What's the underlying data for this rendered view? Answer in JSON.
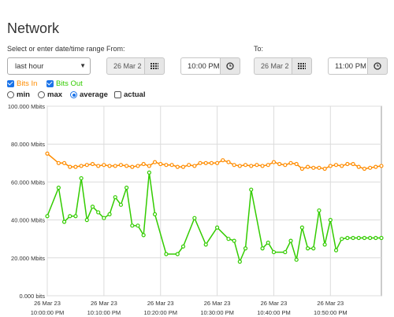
{
  "page": {
    "title": "Network"
  },
  "range": {
    "label": "Select or enter date/time range",
    "selected": "last hour"
  },
  "from": {
    "label": "From:",
    "date": "26 Mar 2",
    "time": "10:00 PM"
  },
  "to": {
    "label": "To:",
    "date": "26 Mar 2",
    "time": "11:00 PM"
  },
  "series_toggles": [
    {
      "label": "Bits In",
      "checked": true,
      "color": "#ff8c00"
    },
    {
      "label": "Bits Out",
      "checked": true,
      "color": "#33cc00"
    }
  ],
  "aggregation": {
    "options": [
      "min",
      "max",
      "average"
    ],
    "selected": "average",
    "actual_label": "actual",
    "actual_checked": false
  },
  "chart_data": {
    "type": "line",
    "y_ticks": [
      "100.000 Mbits",
      "80.000 Mbits",
      "60.000 Mbits",
      "40.000 Mbits",
      "20.000 Mbits",
      "0.000 bits"
    ],
    "x_ticks": [
      {
        "date": "26 Mar 23",
        "time": "10:00:00 PM"
      },
      {
        "date": "26 Mar 23",
        "time": "10:10:00 PM"
      },
      {
        "date": "26 Mar 23",
        "time": "10:20:00 PM"
      },
      {
        "date": "26 Mar 23",
        "time": "10:30:00 PM"
      },
      {
        "date": "26 Mar 23",
        "time": "10:40:00 PM"
      },
      {
        "date": "26 Mar 23",
        "time": "10:50:00 PM"
      }
    ],
    "ylim": [
      0,
      100
    ],
    "x_unit": "minutes past 10:00 PM",
    "xlim": [
      0,
      59
    ],
    "grid": true,
    "series": [
      {
        "name": "Bits In",
        "color": "#ff8c00",
        "x": [
          0,
          2,
          3,
          4,
          5,
          6,
          7,
          8,
          9,
          10,
          11,
          12,
          13,
          14,
          15,
          16,
          17,
          18,
          19,
          20,
          21,
          22,
          23,
          24,
          25,
          26,
          27,
          28,
          29,
          30,
          31,
          32,
          33,
          34,
          35,
          36,
          37,
          38,
          39,
          40,
          41,
          42,
          43,
          44,
          45,
          46,
          47,
          48,
          49,
          50,
          51,
          52,
          53,
          54,
          55,
          56,
          57,
          58,
          59
        ],
        "values": [
          75,
          70,
          70,
          68,
          68,
          68.5,
          69,
          69.5,
          68.5,
          69,
          68.5,
          68.5,
          69,
          68.5,
          68,
          68.5,
          69.5,
          68.5,
          70.5,
          69.5,
          69,
          69,
          68,
          68,
          69,
          68.5,
          70,
          70,
          70,
          70,
          71.5,
          70.5,
          69,
          68.5,
          69,
          68.5,
          69,
          68.5,
          69,
          70.5,
          69.5,
          69,
          70,
          69.5,
          67,
          68,
          67.5,
          67.5,
          67,
          68.5,
          69,
          68.5,
          69.5,
          69.5,
          68,
          67,
          67.5,
          68,
          68.5
        ]
      },
      {
        "name": "Bits Out",
        "color": "#33cc00",
        "x": [
          0,
          2,
          3,
          4,
          5,
          6,
          7,
          8,
          9,
          10,
          11,
          12,
          13,
          14,
          15,
          16,
          17,
          18,
          19,
          21,
          23,
          24,
          26,
          28,
          30,
          32,
          33,
          34,
          35,
          36,
          38,
          39,
          40,
          42,
          43,
          44,
          45,
          46,
          47,
          48,
          49,
          50,
          51,
          52,
          53,
          54,
          55,
          56,
          57,
          58,
          59
        ],
        "values": [
          42,
          57,
          39,
          42,
          42,
          62,
          40,
          47,
          44,
          41,
          43,
          52,
          48,
          57,
          37,
          37,
          32,
          65,
          43,
          22,
          22,
          26,
          41,
          27,
          36,
          30,
          29,
          18,
          25,
          56,
          25,
          28,
          23,
          23,
          29,
          19,
          36,
          25,
          25,
          45,
          27,
          40,
          24,
          30,
          30.5,
          30.5,
          30.5,
          30.5,
          30.5,
          30.5,
          30.5
        ]
      }
    ]
  }
}
